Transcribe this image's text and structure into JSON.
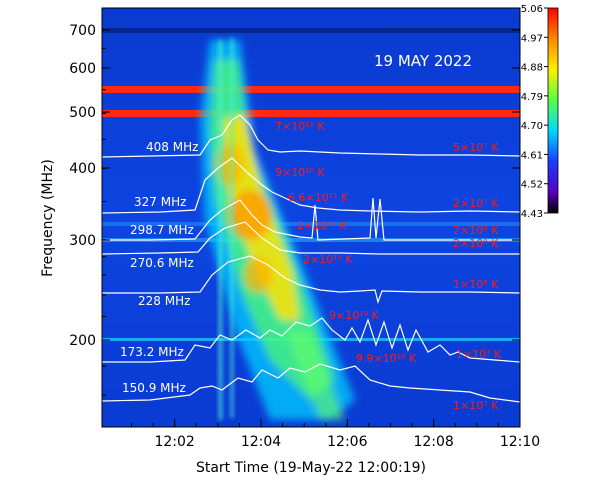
{
  "chart_data": {
    "type": "heatmap",
    "title": "19 MAY 2022",
    "xlabel": "Start Time (19-May-22 12:00:19)",
    "ylabel": "Frequency (MHz)",
    "x_ticks": [
      "12:02",
      "12:04",
      "12:06",
      "12:08",
      "12:10"
    ],
    "y_ticks": [
      "700",
      "600",
      "500",
      "400",
      "300",
      "200"
    ],
    "y_scale": "log",
    "colorbar": {
      "ticks": [
        "5.06",
        "4.97",
        "4.88",
        "4.79",
        "4.70",
        "4.61",
        "4.52",
        "4.43"
      ],
      "min": 4.43,
      "max": 5.06
    },
    "series": [
      {
        "name": "408 MHz",
        "temp_labels": [
          "7×10¹¹ K",
          "5×10⁷ K"
        ]
      },
      {
        "name": "327 MHz",
        "temp_labels": [
          "9×10¹⁰ K",
          "2×10⁷ K"
        ]
      },
      {
        "name": "298.7 MHz",
        "temp_labels": [
          "6.6×10¹¹ K",
          "2×10⁸ K"
        ]
      },
      {
        "name": "270.6 MHz",
        "temp_labels": [
          "2×10¹¹ K",
          "2×10⁸ K"
        ]
      },
      {
        "name": "228 MHz",
        "temp_labels": [
          "2×10¹⁰ K",
          "1×10⁸ K"
        ]
      },
      {
        "name": "173.2 MHz",
        "temp_labels": [
          "9×10¹⁰ K",
          "1×10⁷ K"
        ]
      },
      {
        "name": "150.9 MHz",
        "temp_labels": [
          "9.9×10¹⁰ K",
          "1×10⁷ K"
        ]
      }
    ]
  }
}
